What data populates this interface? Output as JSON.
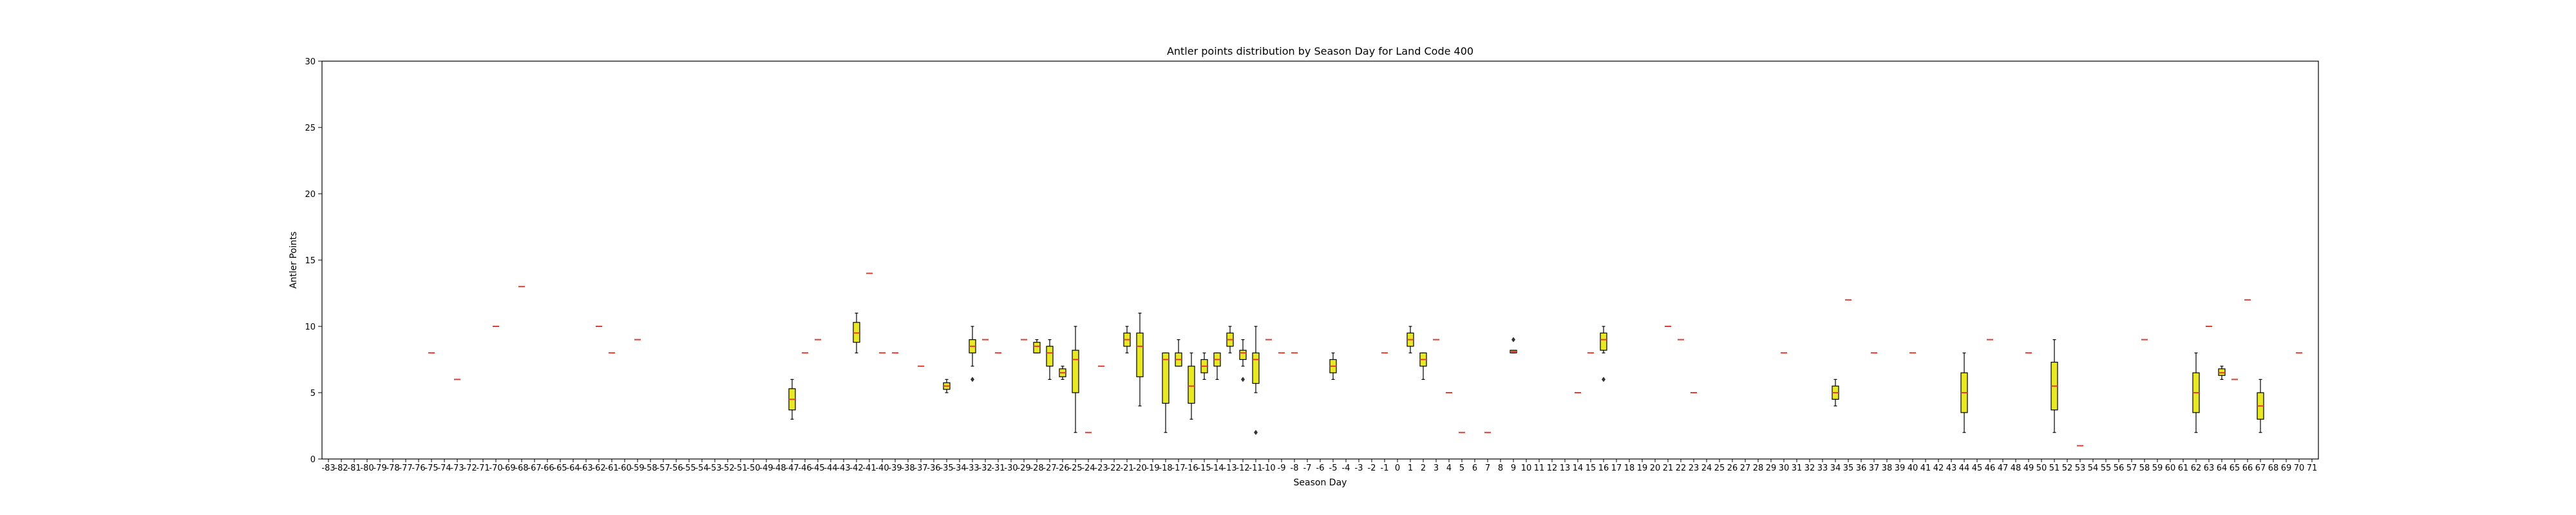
{
  "chart_data": {
    "type": "box",
    "title": "Antler points distribution by Season Day for Land Code 400",
    "xlabel": "Season Day",
    "ylabel": "Antler Points",
    "ylim": [
      0,
      30
    ],
    "yticks": [
      0,
      5,
      10,
      15,
      20,
      25,
      30
    ],
    "x_categories": [
      "-83",
      "-82",
      "-81",
      "-80",
      "-79",
      "-78",
      "-77",
      "-76",
      "-75",
      "-74",
      "-73",
      "-72",
      "-71",
      "-70",
      "-69",
      "-68",
      "-67",
      "-66",
      "-65",
      "-64",
      "-63",
      "-62",
      "-61",
      "-60",
      "-59",
      "-58",
      "-57",
      "-56",
      "-55",
      "-54",
      "-53",
      "-52",
      "-51",
      "-50",
      "-49",
      "-48",
      "-47",
      "-46",
      "-45",
      "-44",
      "-43",
      "-42",
      "-41",
      "-40",
      "-39",
      "-38",
      "-37",
      "-36",
      "-35",
      "-34",
      "-33",
      "-32",
      "-31",
      "-30",
      "-29",
      "-28",
      "-27",
      "-26",
      "-25",
      "-24",
      "-23",
      "-22",
      "-21",
      "-20",
      "-19",
      "-18",
      "-17",
      "-16",
      "-15",
      "-14",
      "-13",
      "-12",
      "-11",
      "-10",
      "-9",
      "-8",
      "-7",
      "-6",
      "-5",
      "-4",
      "-3",
      "-2",
      "-1",
      "0",
      "1",
      "2",
      "3",
      "4",
      "5",
      "6",
      "7",
      "8",
      "9",
      "10",
      "11",
      "12",
      "13",
      "14",
      "15",
      "16",
      "17",
      "18",
      "19",
      "20",
      "21",
      "22",
      "23",
      "24",
      "25",
      "26",
      "27",
      "28",
      "29",
      "30",
      "31",
      "32",
      "33",
      "34",
      "35",
      "36",
      "37",
      "38",
      "39",
      "40",
      "41",
      "42",
      "43",
      "44",
      "45",
      "46",
      "47",
      "48",
      "49",
      "50",
      "51",
      "52",
      "53",
      "54",
      "55",
      "56",
      "57",
      "58",
      "59",
      "60",
      "61",
      "62",
      "63",
      "64",
      "65",
      "66",
      "67",
      "68",
      "69",
      "70",
      "71"
    ],
    "box_color": "#e8e826",
    "median_color": "#e03c31",
    "boxes": [
      {
        "day": "-75",
        "whislo": 8,
        "q1": 8,
        "med": 8,
        "q3": 8,
        "whishi": 8,
        "fliers": []
      },
      {
        "day": "-73",
        "whislo": 6,
        "q1": 6,
        "med": 6,
        "q3": 6,
        "whishi": 6,
        "fliers": []
      },
      {
        "day": "-70",
        "whislo": 10,
        "q1": 10,
        "med": 10,
        "q3": 10,
        "whishi": 10,
        "fliers": []
      },
      {
        "day": "-68",
        "whislo": 13,
        "q1": 13,
        "med": 13,
        "q3": 13,
        "whishi": 13,
        "fliers": []
      },
      {
        "day": "-62",
        "whislo": 10,
        "q1": 10,
        "med": 10,
        "q3": 10,
        "whishi": 10,
        "fliers": []
      },
      {
        "day": "-61",
        "whislo": 8,
        "q1": 8,
        "med": 8,
        "q3": 8,
        "whishi": 8,
        "fliers": []
      },
      {
        "day": "-59",
        "whislo": 9,
        "q1": 9,
        "med": 9,
        "q3": 9,
        "whishi": 9,
        "fliers": []
      },
      {
        "day": "-47",
        "whislo": 3,
        "q1": 3.7,
        "med": 4.5,
        "q3": 5.3,
        "whishi": 6,
        "fliers": []
      },
      {
        "day": "-46",
        "whislo": 8,
        "q1": 8,
        "med": 8,
        "q3": 8,
        "whishi": 8,
        "fliers": []
      },
      {
        "day": "-45",
        "whislo": 9,
        "q1": 9,
        "med": 9,
        "q3": 9,
        "whishi": 9,
        "fliers": []
      },
      {
        "day": "-42",
        "whislo": 8,
        "q1": 8.8,
        "med": 9.5,
        "q3": 10.3,
        "whishi": 11,
        "fliers": []
      },
      {
        "day": "-41",
        "whislo": 14,
        "q1": 14,
        "med": 14,
        "q3": 14,
        "whishi": 14,
        "fliers": []
      },
      {
        "day": "-40",
        "whislo": 8,
        "q1": 8,
        "med": 8,
        "q3": 8,
        "whishi": 8,
        "fliers": []
      },
      {
        "day": "-39",
        "whislo": 8,
        "q1": 8,
        "med": 8,
        "q3": 8,
        "whishi": 8,
        "fliers": []
      },
      {
        "day": "-37",
        "whislo": 7,
        "q1": 7,
        "med": 7,
        "q3": 7,
        "whishi": 7,
        "fliers": []
      },
      {
        "day": "-35",
        "whislo": 5,
        "q1": 5.25,
        "med": 5.5,
        "q3": 5.75,
        "whishi": 6,
        "fliers": []
      },
      {
        "day": "-33",
        "whislo": 7,
        "q1": 8,
        "med": 8.5,
        "q3": 9,
        "whishi": 10,
        "fliers": [
          6
        ]
      },
      {
        "day": "-32",
        "whislo": 9,
        "q1": 9,
        "med": 9,
        "q3": 9,
        "whishi": 9,
        "fliers": []
      },
      {
        "day": "-31",
        "whislo": 8,
        "q1": 8,
        "med": 8,
        "q3": 8,
        "whishi": 8,
        "fliers": []
      },
      {
        "day": "-29",
        "whislo": 9,
        "q1": 9,
        "med": 9,
        "q3": 9,
        "whishi": 9,
        "fliers": []
      },
      {
        "day": "-28",
        "whislo": 8,
        "q1": 8,
        "med": 8.5,
        "q3": 8.8,
        "whishi": 9,
        "fliers": []
      },
      {
        "day": "-27",
        "whislo": 6,
        "q1": 7,
        "med": 8,
        "q3": 8.5,
        "whishi": 9,
        "fliers": []
      },
      {
        "day": "-26",
        "whislo": 6,
        "q1": 6.2,
        "med": 6.5,
        "q3": 6.8,
        "whishi": 7,
        "fliers": []
      },
      {
        "day": "-25",
        "whislo": 2,
        "q1": 5,
        "med": 7.5,
        "q3": 8.2,
        "whishi": 10,
        "fliers": []
      },
      {
        "day": "-24",
        "whislo": 2,
        "q1": 2,
        "med": 2,
        "q3": 2,
        "whishi": 2,
        "fliers": []
      },
      {
        "day": "-23",
        "whislo": 7,
        "q1": 7,
        "med": 7,
        "q3": 7,
        "whishi": 7,
        "fliers": []
      },
      {
        "day": "-21",
        "whislo": 8,
        "q1": 8.5,
        "med": 9,
        "q3": 9.5,
        "whishi": 10,
        "fliers": []
      },
      {
        "day": "-20",
        "whislo": 4,
        "q1": 6.2,
        "med": 8.5,
        "q3": 9.5,
        "whishi": 11,
        "fliers": []
      },
      {
        "day": "-18",
        "whislo": 2,
        "q1": 4.2,
        "med": 7.5,
        "q3": 8,
        "whishi": 8,
        "fliers": []
      },
      {
        "day": "-17",
        "whislo": 7,
        "q1": 7,
        "med": 7.5,
        "q3": 8,
        "whishi": 9,
        "fliers": []
      },
      {
        "day": "-16",
        "whislo": 3,
        "q1": 4.2,
        "med": 5.5,
        "q3": 7,
        "whishi": 8,
        "fliers": []
      },
      {
        "day": "-15",
        "whislo": 6,
        "q1": 6.5,
        "med": 7,
        "q3": 7.5,
        "whishi": 8,
        "fliers": []
      },
      {
        "day": "-14",
        "whislo": 6,
        "q1": 7,
        "med": 7.5,
        "q3": 8,
        "whishi": 8,
        "fliers": []
      },
      {
        "day": "-13",
        "whislo": 8,
        "q1": 8.5,
        "med": 9,
        "q3": 9.5,
        "whishi": 10,
        "fliers": []
      },
      {
        "day": "-12",
        "whislo": 7,
        "q1": 7.5,
        "med": 8,
        "q3": 8.2,
        "whishi": 9,
        "fliers": [
          6
        ]
      },
      {
        "day": "-11",
        "whislo": 5,
        "q1": 5.7,
        "med": 7.5,
        "q3": 8,
        "whishi": 10,
        "fliers": [
          2
        ]
      },
      {
        "day": "-10",
        "whislo": 9,
        "q1": 9,
        "med": 9,
        "q3": 9,
        "whishi": 9,
        "fliers": []
      },
      {
        "day": "-9",
        "whislo": 8,
        "q1": 8,
        "med": 8,
        "q3": 8,
        "whishi": 8,
        "fliers": []
      },
      {
        "day": "-8",
        "whislo": 8,
        "q1": 8,
        "med": 8,
        "q3": 8,
        "whishi": 8,
        "fliers": []
      },
      {
        "day": "-5",
        "whislo": 6,
        "q1": 6.5,
        "med": 7,
        "q3": 7.5,
        "whishi": 8,
        "fliers": []
      },
      {
        "day": "-1",
        "whislo": 8,
        "q1": 8,
        "med": 8,
        "q3": 8,
        "whishi": 8,
        "fliers": []
      },
      {
        "day": "1",
        "whislo": 8,
        "q1": 8.5,
        "med": 9,
        "q3": 9.5,
        "whishi": 10,
        "fliers": []
      },
      {
        "day": "2",
        "whislo": 6,
        "q1": 7,
        "med": 7.5,
        "q3": 8,
        "whishi": 8,
        "fliers": []
      },
      {
        "day": "3",
        "whislo": 9,
        "q1": 9,
        "med": 9,
        "q3": 9,
        "whishi": 9,
        "fliers": []
      },
      {
        "day": "4",
        "whislo": 5,
        "q1": 5,
        "med": 5,
        "q3": 5,
        "whishi": 5,
        "fliers": []
      },
      {
        "day": "5",
        "whislo": 2,
        "q1": 2,
        "med": 2,
        "q3": 2,
        "whishi": 2,
        "fliers": []
      },
      {
        "day": "7",
        "whislo": 2,
        "q1": 2,
        "med": 2,
        "q3": 2,
        "whishi": 2,
        "fliers": []
      },
      {
        "day": "9",
        "whislo": 8,
        "q1": 8,
        "med": 8.1,
        "q3": 8.2,
        "whishi": 8.2,
        "fliers": [
          9
        ]
      },
      {
        "day": "14",
        "whislo": 5,
        "q1": 5,
        "med": 5,
        "q3": 5,
        "whishi": 5,
        "fliers": []
      },
      {
        "day": "15",
        "whislo": 8,
        "q1": 8,
        "med": 8,
        "q3": 8,
        "whishi": 8,
        "fliers": []
      },
      {
        "day": "16",
        "whislo": 8,
        "q1": 8.2,
        "med": 9,
        "q3": 9.5,
        "whishi": 10,
        "fliers": [
          6
        ]
      },
      {
        "day": "21",
        "whislo": 10,
        "q1": 10,
        "med": 10,
        "q3": 10,
        "whishi": 10,
        "fliers": []
      },
      {
        "day": "22",
        "whislo": 9,
        "q1": 9,
        "med": 9,
        "q3": 9,
        "whishi": 9,
        "fliers": []
      },
      {
        "day": "23",
        "whislo": 5,
        "q1": 5,
        "med": 5,
        "q3": 5,
        "whishi": 5,
        "fliers": []
      },
      {
        "day": "30",
        "whislo": 8,
        "q1": 8,
        "med": 8,
        "q3": 8,
        "whishi": 8,
        "fliers": []
      },
      {
        "day": "34",
        "whislo": 4,
        "q1": 4.5,
        "med": 5,
        "q3": 5.5,
        "whishi": 6,
        "fliers": []
      },
      {
        "day": "35",
        "whislo": 12,
        "q1": 12,
        "med": 12,
        "q3": 12,
        "whishi": 12,
        "fliers": []
      },
      {
        "day": "37",
        "whislo": 8,
        "q1": 8,
        "med": 8,
        "q3": 8,
        "whishi": 8,
        "fliers": []
      },
      {
        "day": "40",
        "whislo": 8,
        "q1": 8,
        "med": 8,
        "q3": 8,
        "whishi": 8,
        "fliers": []
      },
      {
        "day": "44",
        "whislo": 2,
        "q1": 3.5,
        "med": 5,
        "q3": 6.5,
        "whishi": 8,
        "fliers": []
      },
      {
        "day": "46",
        "whislo": 9,
        "q1": 9,
        "med": 9,
        "q3": 9,
        "whishi": 9,
        "fliers": []
      },
      {
        "day": "49",
        "whislo": 8,
        "q1": 8,
        "med": 8,
        "q3": 8,
        "whishi": 8,
        "fliers": []
      },
      {
        "day": "51",
        "whislo": 2,
        "q1": 3.7,
        "med": 5.5,
        "q3": 7.3,
        "whishi": 9,
        "fliers": []
      },
      {
        "day": "53",
        "whislo": 1,
        "q1": 1,
        "med": 1,
        "q3": 1,
        "whishi": 1,
        "fliers": []
      },
      {
        "day": "58",
        "whislo": 9,
        "q1": 9,
        "med": 9,
        "q3": 9,
        "whishi": 9,
        "fliers": []
      },
      {
        "day": "62",
        "whislo": 2,
        "q1": 3.5,
        "med": 5,
        "q3": 6.5,
        "whishi": 8,
        "fliers": []
      },
      {
        "day": "63",
        "whislo": 10,
        "q1": 10,
        "med": 10,
        "q3": 10,
        "whishi": 10,
        "fliers": []
      },
      {
        "day": "64",
        "whislo": 6,
        "q1": 6.3,
        "med": 6.5,
        "q3": 6.8,
        "whishi": 7,
        "fliers": []
      },
      {
        "day": "65",
        "whislo": 6,
        "q1": 6,
        "med": 6,
        "q3": 6,
        "whishi": 6,
        "fliers": []
      },
      {
        "day": "66",
        "whislo": 12,
        "q1": 12,
        "med": 12,
        "q3": 12,
        "whishi": 12,
        "fliers": []
      },
      {
        "day": "67",
        "whislo": 2,
        "q1": 3,
        "med": 4,
        "q3": 5,
        "whishi": 6,
        "fliers": []
      },
      {
        "day": "70",
        "whislo": 8,
        "q1": 8,
        "med": 8,
        "q3": 8,
        "whishi": 8,
        "fliers": []
      }
    ]
  }
}
